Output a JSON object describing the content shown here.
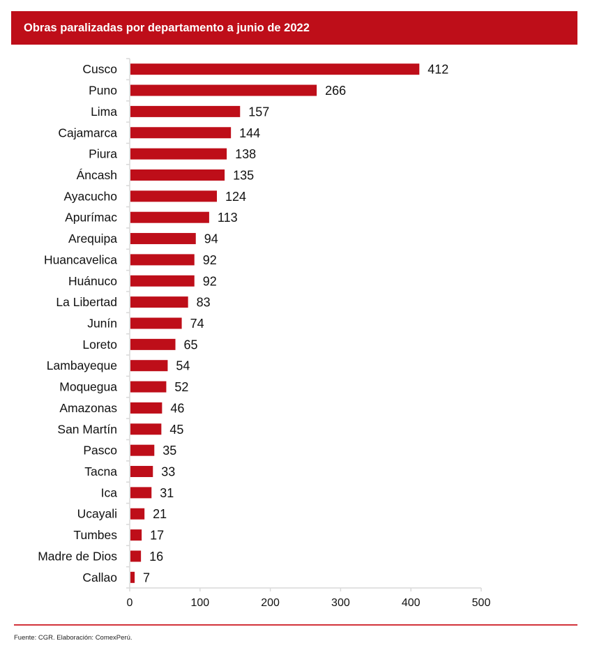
{
  "header": {
    "title": "Obras paralizadas por departamento a junio de 2022"
  },
  "footer": {
    "source": "Fuente: CGR. Elaboración: ComexPerú."
  },
  "colors": {
    "bar": "#be0e19",
    "banner": "#be0e19",
    "axis": "#d9d9d9",
    "rule": "#d2333b"
  },
  "chart_data": {
    "type": "bar",
    "orientation": "horizontal",
    "title": "Obras paralizadas por departamento a junio de 2022",
    "xlabel": "",
    "ylabel": "",
    "xlim": [
      0,
      500
    ],
    "xticks": [
      0,
      100,
      200,
      300,
      400,
      500
    ],
    "grid": false,
    "categories": [
      "Cusco",
      "Puno",
      "Lima",
      "Cajamarca",
      "Piura",
      "Áncash",
      "Ayacucho",
      "Apurímac",
      "Arequipa",
      "Huancavelica",
      "Huánuco",
      "La Libertad",
      "Junín",
      "Loreto",
      "Lambayeque",
      "Moquegua",
      "Amazonas",
      "San Martín",
      "Pasco",
      "Tacna",
      "Ica",
      "Ucayali",
      "Tumbes",
      "Madre de Dios",
      "Callao"
    ],
    "values": [
      412,
      266,
      157,
      144,
      138,
      135,
      124,
      113,
      94,
      92,
      92,
      83,
      74,
      65,
      54,
      52,
      46,
      45,
      35,
      33,
      31,
      21,
      17,
      16,
      7
    ],
    "data_labels": true
  }
}
